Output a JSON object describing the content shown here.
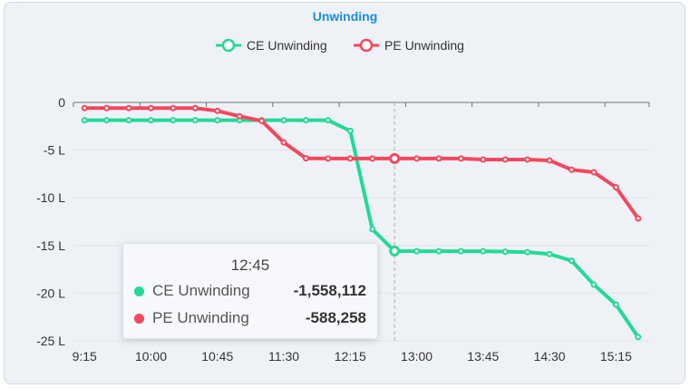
{
  "chart_data": {
    "type": "line",
    "title": "Unwinding",
    "legend_position": "top",
    "grid": true,
    "categories": [
      "9:15",
      "9:30",
      "9:45",
      "10:00",
      "10:15",
      "10:30",
      "10:45",
      "11:00",
      "11:15",
      "11:30",
      "11:45",
      "12:00",
      "12:15",
      "12:30",
      "12:45",
      "13:00",
      "13:15",
      "13:30",
      "13:45",
      "14:00",
      "14:15",
      "14:30",
      "14:45",
      "15:00",
      "15:15",
      "15:30"
    ],
    "x_tick_labels": [
      "9:15",
      "10:00",
      "10:45",
      "11:30",
      "12:15",
      "13:00",
      "13:45",
      "14:30",
      "15:15"
    ],
    "y_ticks": [
      0,
      -500000,
      -1000000,
      -1500000,
      -2000000,
      -2500000
    ],
    "y_tick_labels": [
      "0",
      "-5 L",
      "-10 L",
      "-15 L",
      "-20 L",
      "-25 L"
    ],
    "ylim": [
      -2500000,
      0
    ],
    "series": [
      {
        "name": "CE Unwinding",
        "color": "#24d995",
        "values": [
          -187000,
          -187000,
          -187000,
          -187000,
          -187000,
          -187000,
          -187000,
          -187000,
          -187000,
          -187000,
          -187000,
          -187000,
          -298000,
          -1330000,
          -1558112,
          -1560000,
          -1560000,
          -1560000,
          -1560000,
          -1565000,
          -1570000,
          -1590000,
          -1660000,
          -1910000,
          -2120000,
          -2460000
        ]
      },
      {
        "name": "PE Unwinding",
        "color": "#f5475e",
        "values": [
          -60000,
          -60000,
          -60000,
          -60000,
          -60000,
          -60000,
          -88000,
          -145000,
          -193000,
          -420000,
          -586000,
          -588258,
          -588258,
          -588258,
          -588258,
          -588258,
          -588258,
          -588258,
          -599000,
          -599000,
          -599000,
          -608000,
          -706000,
          -732000,
          -890000,
          -1217000
        ]
      }
    ]
  },
  "tooltip": {
    "time": "12:45",
    "rows": [
      {
        "name": "CE Unwinding",
        "value": "-1,558,112"
      },
      {
        "name": "PE Unwinding",
        "value": "-588,258"
      }
    ]
  }
}
